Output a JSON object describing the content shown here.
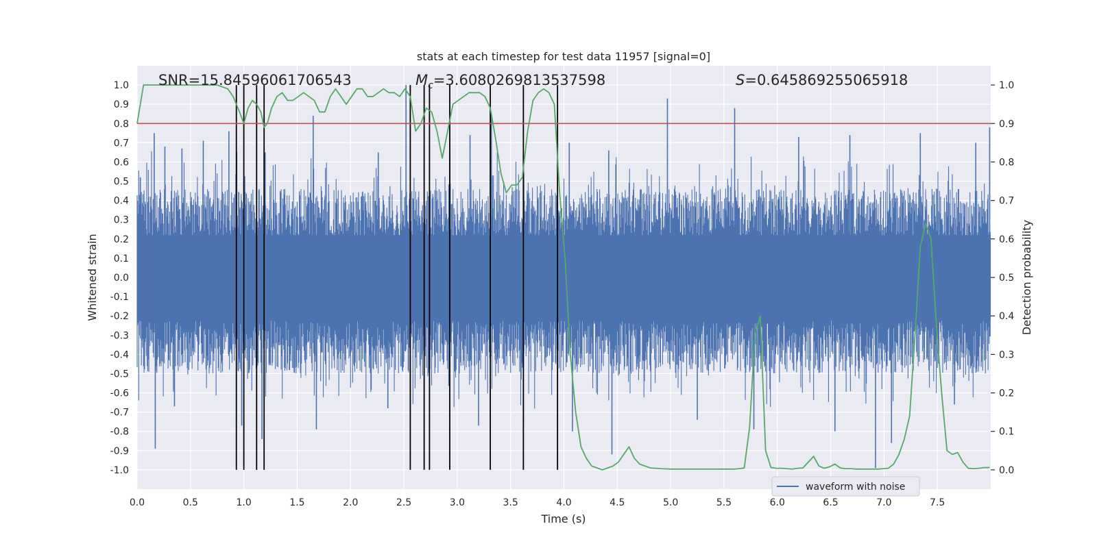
{
  "chart_data": {
    "type": "line",
    "title": "stats at each timestep for test data 11957 [signal=0]",
    "xlabel": "Time (s)",
    "ylabel": "Whitened strain",
    "ylabel_right": "Detection probability",
    "xlim": [
      0,
      8.0
    ],
    "ylim": [
      -1.1,
      1.1
    ],
    "ylim_right": [
      -0.05,
      1.05
    ],
    "x_ticks": [
      "0.0",
      "0.5",
      "1.0",
      "1.5",
      "2.0",
      "2.5",
      "3.0",
      "3.5",
      "4.0",
      "4.5",
      "5.0",
      "5.5",
      "6.0",
      "6.5",
      "7.0",
      "7.5"
    ],
    "y_ticks": [
      "1.0",
      "0.9",
      "0.8",
      "0.7",
      "0.6",
      "0.5",
      "0.4",
      "0.3",
      "0.2",
      "0.1",
      "0.0",
      "-0.1",
      "-0.2",
      "-0.3",
      "-0.4",
      "-0.5",
      "-0.6",
      "-0.7",
      "-0.8",
      "-0.9",
      "-1.0"
    ],
    "y_ticks_right": [
      "1.0",
      "0.9",
      "0.8",
      "0.7",
      "0.6",
      "0.5",
      "0.4",
      "0.3",
      "0.2",
      "0.1",
      "0.0"
    ],
    "annotations": {
      "snr_label": "SNR",
      "snr_value": "=15.84596061706543",
      "mc_label": "M",
      "mc_sub": "c",
      "mc_value": "=3.6080269813537598",
      "s_label": "S",
      "s_value": "=0.645869255065918"
    },
    "threshold": 0.8,
    "detection_times": [
      0.93,
      1.0,
      1.12,
      1.19,
      2.56,
      2.69,
      2.74,
      2.93,
      3.31,
      3.62,
      3.94
    ],
    "legend": [
      "waveform with noise"
    ],
    "series": [
      {
        "name": "Detection probability",
        "axis": "right",
        "color": "#55a868",
        "x": [
          0.0,
          0.06,
          0.12,
          0.2,
          0.3,
          0.45,
          0.6,
          0.75,
          0.85,
          0.9,
          0.93,
          0.96,
          1.0,
          1.04,
          1.08,
          1.12,
          1.16,
          1.19,
          1.22,
          1.26,
          1.31,
          1.36,
          1.41,
          1.46,
          1.51,
          1.56,
          1.61,
          1.66,
          1.71,
          1.76,
          1.81,
          1.86,
          1.91,
          1.96,
          2.01,
          2.06,
          2.11,
          2.16,
          2.21,
          2.26,
          2.31,
          2.36,
          2.41,
          2.46,
          2.51,
          2.56,
          2.61,
          2.66,
          2.71,
          2.76,
          2.81,
          2.86,
          2.91,
          2.96,
          3.01,
          3.06,
          3.11,
          3.16,
          3.21,
          3.26,
          3.31,
          3.36,
          3.41,
          3.46,
          3.51,
          3.56,
          3.61,
          3.66,
          3.71,
          3.76,
          3.81,
          3.86,
          3.91,
          3.96,
          4.01,
          4.06,
          4.11,
          4.16,
          4.21,
          4.26,
          4.31,
          4.36,
          4.41,
          4.46,
          4.51,
          4.56,
          4.61,
          4.66,
          4.71,
          4.76,
          4.81,
          4.86,
          4.91,
          5.0,
          5.2,
          5.4,
          5.6,
          5.64,
          5.69,
          5.74,
          5.79,
          5.84,
          5.89,
          5.94,
          5.99,
          6.04,
          6.09,
          6.14,
          6.19,
          6.24,
          6.29,
          6.34,
          6.39,
          6.44,
          6.49,
          6.54,
          6.59,
          6.64,
          6.69,
          6.74,
          6.79,
          6.84,
          6.89,
          6.94,
          6.99,
          7.04,
          7.09,
          7.14,
          7.19,
          7.24,
          7.29,
          7.34,
          7.39,
          7.44,
          7.49,
          7.54,
          7.59,
          7.64,
          7.69,
          7.74,
          7.79,
          7.84,
          7.89,
          7.94,
          7.99
        ],
        "y": [
          0.9,
          1.0,
          1.0,
          1.0,
          1.0,
          1.0,
          1.0,
          1.0,
          0.99,
          0.97,
          0.95,
          0.93,
          0.9,
          0.94,
          0.96,
          0.95,
          0.93,
          0.89,
          0.9,
          0.94,
          0.97,
          0.98,
          0.96,
          0.96,
          0.97,
          0.98,
          0.97,
          0.96,
          0.93,
          0.93,
          0.97,
          0.99,
          0.97,
          0.95,
          0.97,
          0.99,
          0.99,
          0.97,
          0.97,
          0.98,
          0.99,
          0.98,
          0.98,
          0.97,
          0.99,
          0.97,
          0.88,
          0.9,
          0.94,
          0.93,
          0.88,
          0.81,
          0.88,
          0.95,
          0.96,
          0.97,
          0.98,
          0.98,
          0.98,
          0.97,
          0.94,
          0.86,
          0.77,
          0.72,
          0.74,
          0.74,
          0.76,
          0.88,
          0.96,
          0.98,
          0.99,
          0.98,
          0.95,
          0.72,
          0.55,
          0.3,
          0.15,
          0.06,
          0.03,
          0.01,
          0.005,
          0.0,
          0.005,
          0.01,
          0.02,
          0.04,
          0.06,
          0.03,
          0.015,
          0.01,
          0.005,
          0.004,
          0.003,
          0.002,
          0.002,
          0.002,
          0.002,
          0.003,
          0.005,
          0.11,
          0.35,
          0.4,
          0.05,
          0.006,
          0.004,
          0.004,
          0.003,
          0.002,
          0.004,
          0.005,
          0.02,
          0.035,
          0.01,
          0.004,
          0.008,
          0.015,
          0.005,
          0.003,
          0.003,
          0.002,
          0.002,
          0.002,
          0.002,
          0.002,
          0.003,
          0.004,
          0.015,
          0.04,
          0.08,
          0.14,
          0.35,
          0.58,
          0.64,
          0.6,
          0.38,
          0.2,
          0.05,
          0.04,
          0.045,
          0.02,
          0.004,
          0.003,
          0.004,
          0.006,
          0.006
        ]
      },
      {
        "name": "waveform with noise",
        "axis": "left",
        "color": "#4c72b0",
        "description_type": "noise",
        "envelope_upper": 0.46,
        "envelope_lower": -0.5,
        "peaks_up": [
          [
            0.03,
            0.52
          ],
          [
            0.16,
            0.75
          ],
          [
            0.26,
            0.68
          ],
          [
            0.42,
            0.67
          ],
          [
            0.62,
            0.71
          ],
          [
            0.86,
            0.76
          ],
          [
            1.2,
            0.65
          ],
          [
            1.65,
            0.84
          ],
          [
            2.26,
            0.65
          ],
          [
            2.52,
            1.0
          ],
          [
            2.93,
            0.65
          ],
          [
            3.12,
            0.74
          ],
          [
            3.32,
            0.85
          ],
          [
            4.05,
            0.7
          ],
          [
            4.42,
            0.66
          ],
          [
            4.97,
            0.93
          ],
          [
            5.6,
            0.88
          ],
          [
            6.2,
            0.73
          ],
          [
            6.68,
            0.74
          ],
          [
            7.34,
            0.75
          ],
          [
            7.86,
            0.7
          ],
          [
            7.99,
            0.78
          ]
        ],
        "peaks_down": [
          [
            0.17,
            -0.89
          ],
          [
            0.35,
            -0.67
          ],
          [
            0.98,
            -0.77
          ],
          [
            1.17,
            -0.84
          ],
          [
            1.68,
            -0.79
          ],
          [
            2.35,
            -0.68
          ],
          [
            3.2,
            -0.77
          ],
          [
            3.62,
            -0.77
          ],
          [
            4.08,
            -0.8
          ],
          [
            4.45,
            -0.92
          ],
          [
            5.25,
            -0.74
          ],
          [
            5.78,
            -0.79
          ],
          [
            6.54,
            -0.8
          ],
          [
            6.92,
            -0.99
          ],
          [
            7.07,
            -0.86
          ],
          [
            7.66,
            -0.66
          ]
        ]
      }
    ]
  }
}
